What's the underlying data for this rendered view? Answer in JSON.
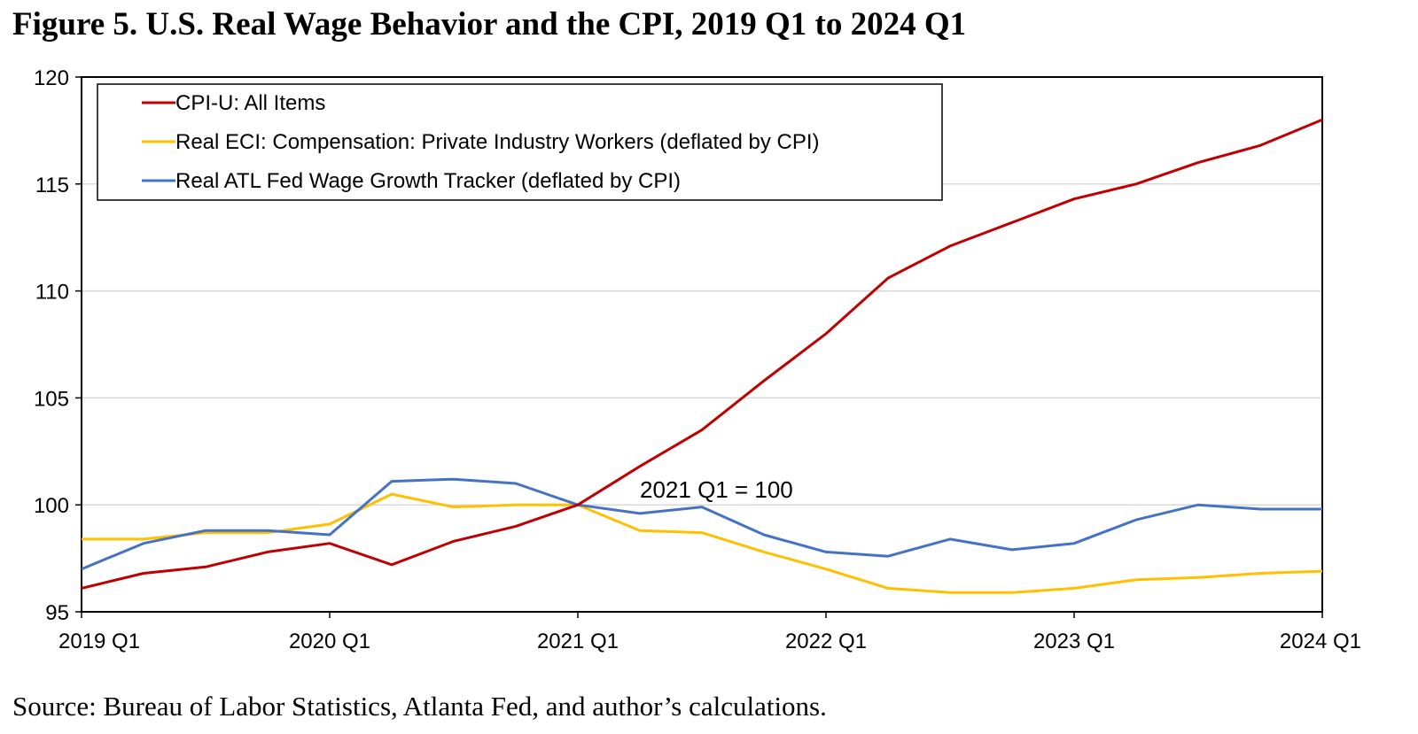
{
  "figure": {
    "title": "Figure 5. U.S. Real Wage Behavior and the CPI, 2019 Q1 to 2024 Q1",
    "source": "Source: Bureau of Labor Statistics, Atlanta Fed, and author’s calculations."
  },
  "chart_data": {
    "type": "line",
    "title": "Figure 5. U.S. Real Wage Behavior and the CPI, 2019 Q1 to 2024 Q1",
    "xlabel": "",
    "ylabel": "",
    "x": [
      "2019 Q1",
      "2019 Q2",
      "2019 Q3",
      "2019 Q4",
      "2020 Q1",
      "2020 Q2",
      "2020 Q3",
      "2020 Q4",
      "2021 Q1",
      "2021 Q2",
      "2021 Q3",
      "2021 Q4",
      "2022 Q1",
      "2022 Q2",
      "2022 Q3",
      "2022 Q4",
      "2023 Q1",
      "2023 Q2",
      "2023 Q3",
      "2023 Q4",
      "2024 Q1"
    ],
    "x_tick_labels": [
      "2019 Q1",
      "2020 Q1",
      "2021 Q1",
      "2022 Q1",
      "2023 Q1",
      "2024 Q1"
    ],
    "ylim": [
      95,
      120
    ],
    "y_ticks": [
      95,
      100,
      105,
      110,
      115,
      120
    ],
    "grid": "horizontal",
    "legend_position": "top-left",
    "annotation": "2021 Q1 = 100",
    "series": [
      {
        "name": "CPI-U: All Items",
        "color": "#c00000",
        "values": [
          96.1,
          96.8,
          97.1,
          97.8,
          98.2,
          97.2,
          98.3,
          99.0,
          100.0,
          101.8,
          103.5,
          105.8,
          108.0,
          110.6,
          112.1,
          113.2,
          114.3,
          115.0,
          116.0,
          116.8,
          118.0
        ]
      },
      {
        "name": "Real ECI: Compensation: Private Industry Workers (deflated by CPI)",
        "color": "#ffc000",
        "values": [
          98.4,
          98.4,
          98.7,
          98.7,
          99.1,
          100.5,
          99.9,
          100.0,
          100.0,
          98.8,
          98.7,
          97.8,
          97.0,
          96.1,
          95.9,
          95.9,
          96.1,
          96.5,
          96.6,
          96.8,
          96.9
        ]
      },
      {
        "name": "Real ATL Fed Wage Growth Tracker (deflated by CPI)",
        "color": "#4472c4",
        "values": [
          97.0,
          98.2,
          98.8,
          98.8,
          98.6,
          101.1,
          101.2,
          101.0,
          100.0,
          99.6,
          99.9,
          98.6,
          97.8,
          97.6,
          98.4,
          97.9,
          98.2,
          99.3,
          100.0,
          99.8,
          99.8
        ]
      }
    ]
  }
}
